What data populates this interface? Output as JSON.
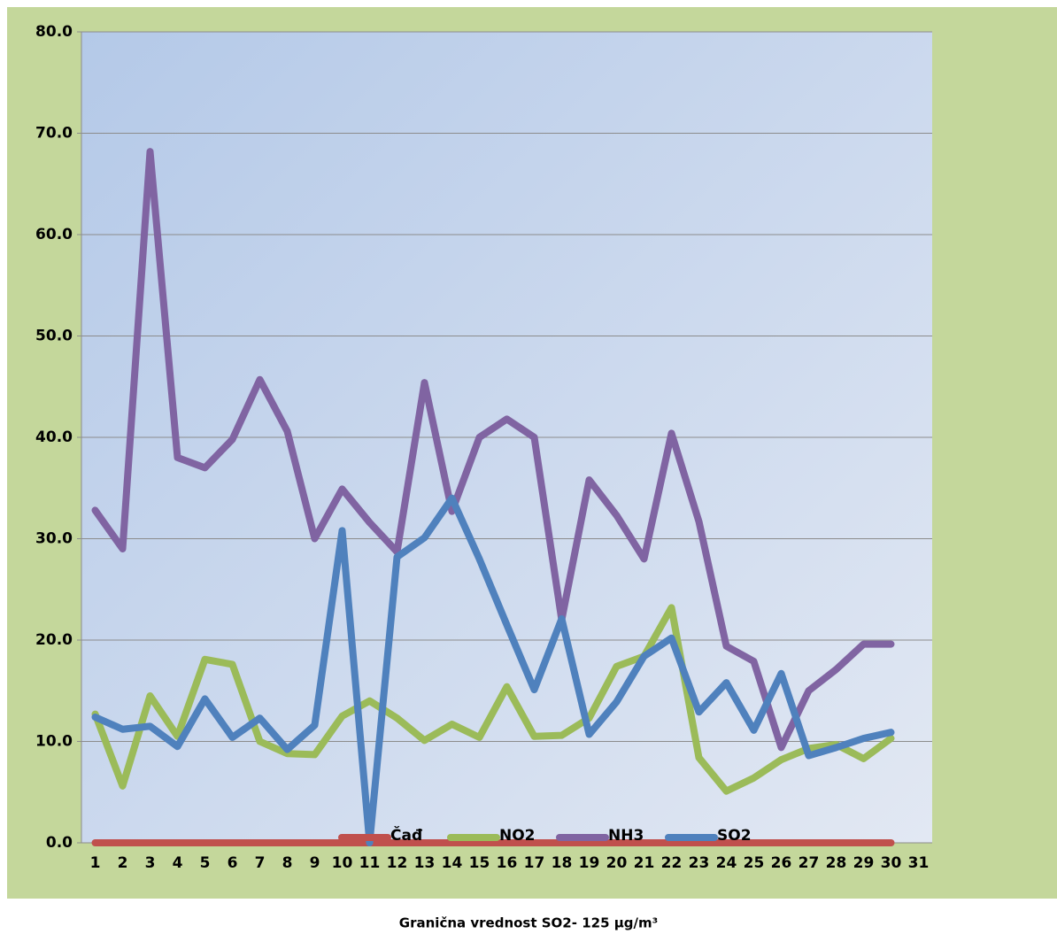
{
  "chart_data": {
    "type": "line",
    "categories": [
      "1",
      "2",
      "3",
      "4",
      "5",
      "6",
      "7",
      "8",
      "9",
      "10",
      "11",
      "12",
      "13",
      "14",
      "15",
      "16",
      "17",
      "18",
      "19",
      "20",
      "21",
      "22",
      "23",
      "24",
      "25",
      "26",
      "27",
      "28",
      "29",
      "30",
      "31"
    ],
    "series": [
      {
        "name": "Čađ",
        "color": "#c0504d",
        "values": [
          0,
          0,
          0,
          0,
          0,
          0,
          0,
          0,
          0,
          0,
          0,
          0,
          0,
          0,
          0,
          0,
          0,
          0,
          0,
          0,
          0,
          0,
          0,
          0,
          0,
          0,
          0,
          0,
          0,
          0,
          null
        ]
      },
      {
        "name": "NO2",
        "color": "#9bbb59",
        "values": [
          12.7,
          5.6,
          14.5,
          10.5,
          18.1,
          17.6,
          10.0,
          8.8,
          8.7,
          12.5,
          14.0,
          12.3,
          10.1,
          11.7,
          10.4,
          15.4,
          10.5,
          10.6,
          12.3,
          17.4,
          18.4,
          23.2,
          8.4,
          5.1,
          6.4,
          8.2,
          9.3,
          9.7,
          8.3,
          10.3,
          null
        ]
      },
      {
        "name": "NH3",
        "color": "#8064a2",
        "values": [
          32.8,
          29.0,
          68.2,
          38.0,
          37.0,
          39.8,
          45.7,
          40.6,
          30.0,
          34.9,
          31.6,
          28.7,
          45.4,
          32.7,
          40.0,
          41.8,
          40.0,
          22.0,
          35.8,
          32.3,
          28.0,
          40.4,
          31.7,
          19.4,
          17.9,
          9.4,
          15.0,
          17.1,
          19.6,
          19.6,
          null
        ]
      },
      {
        "name": "SO2",
        "color": "#4f81bd",
        "values": [
          12.4,
          11.2,
          11.5,
          9.5,
          14.2,
          10.4,
          12.3,
          9.2,
          11.6,
          30.8,
          0.0,
          28.2,
          30.1,
          34.0,
          28.0,
          21.5,
          15.1,
          22.1,
          10.7,
          13.9,
          18.4,
          20.2,
          12.9,
          15.8,
          11.1,
          16.7,
          8.6,
          9.4,
          10.3,
          10.9,
          null
        ]
      }
    ],
    "ylim": [
      0,
      80
    ],
    "yticks": [
      {
        "value": 0,
        "label": "0.0"
      },
      {
        "value": 10,
        "label": "10.0"
      },
      {
        "value": 20,
        "label": "20.0"
      },
      {
        "value": 30,
        "label": "30.0"
      },
      {
        "value": 40,
        "label": "40.0"
      },
      {
        "value": 50,
        "label": "50.0"
      },
      {
        "value": 60,
        "label": "60.0"
      },
      {
        "value": 70,
        "label": "70.0"
      },
      {
        "value": 80,
        "label": "80.0"
      }
    ],
    "grid": true,
    "legend": "bottom",
    "note": "Granična vrednost SO2- 125 µg/m³"
  }
}
